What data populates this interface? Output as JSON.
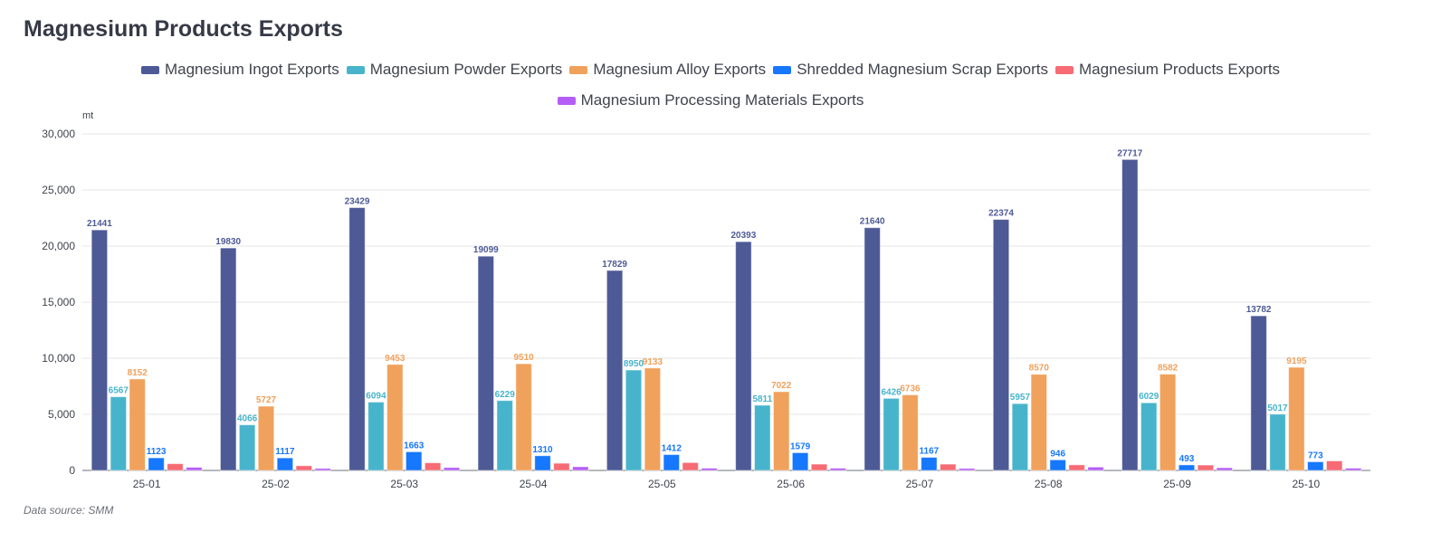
{
  "title": "Magnesium Products Exports",
  "unit": "mt",
  "source": "Data source:  SMM",
  "chart_data": {
    "type": "bar",
    "title": "Magnesium Products Exports",
    "xlabel": "",
    "ylabel": "mt",
    "ylim": [
      0,
      30000
    ],
    "yticks": [
      0,
      5000,
      10000,
      15000,
      20000,
      25000,
      30000
    ],
    "ytick_labels": [
      "0",
      "5,000",
      "10,000",
      "15,000",
      "20,000",
      "25,000",
      "30,000"
    ],
    "grid": true,
    "legend_position": "top-center",
    "categories": [
      "25-01",
      "25-02",
      "25-03",
      "25-04",
      "25-05",
      "25-06",
      "25-07",
      "25-08",
      "25-09",
      "25-10"
    ],
    "series": [
      {
        "name": "Magnesium Ingot Exports",
        "color": "#4e5a96",
        "show_labels": true,
        "values": [
          21441,
          19830,
          23429,
          19099,
          17829,
          20393,
          21640,
          22374,
          27717,
          13782
        ]
      },
      {
        "name": "Magnesium Powder Exports",
        "color": "#47b4cc",
        "show_labels": true,
        "values": [
          6567,
          4066,
          6094,
          6229,
          8950,
          5811,
          6426,
          5957,
          6029,
          5017
        ]
      },
      {
        "name": "Magnesium Alloy Exports",
        "color": "#f0a15c",
        "show_labels": true,
        "values": [
          8152,
          5727,
          9453,
          9510,
          9133,
          7022,
          6736,
          8570,
          8582,
          9195
        ]
      },
      {
        "name": "Shredded Magnesium Scrap Exports",
        "color": "#1677ff",
        "show_labels": true,
        "values": [
          1123,
          1117,
          1663,
          1310,
          1412,
          1579,
          1167,
          946,
          493,
          773
        ]
      },
      {
        "name": "Magnesium Products Exports",
        "color": "#f76b74",
        "show_labels": false,
        "values": [
          600,
          420,
          680,
          640,
          700,
          560,
          560,
          500,
          480,
          850
        ]
      },
      {
        "name": "Magnesium Processing Materials Exports",
        "color": "#b55ef6",
        "show_labels": false,
        "values": [
          280,
          180,
          260,
          330,
          200,
          200,
          180,
          300,
          240,
          200
        ]
      }
    ]
  }
}
